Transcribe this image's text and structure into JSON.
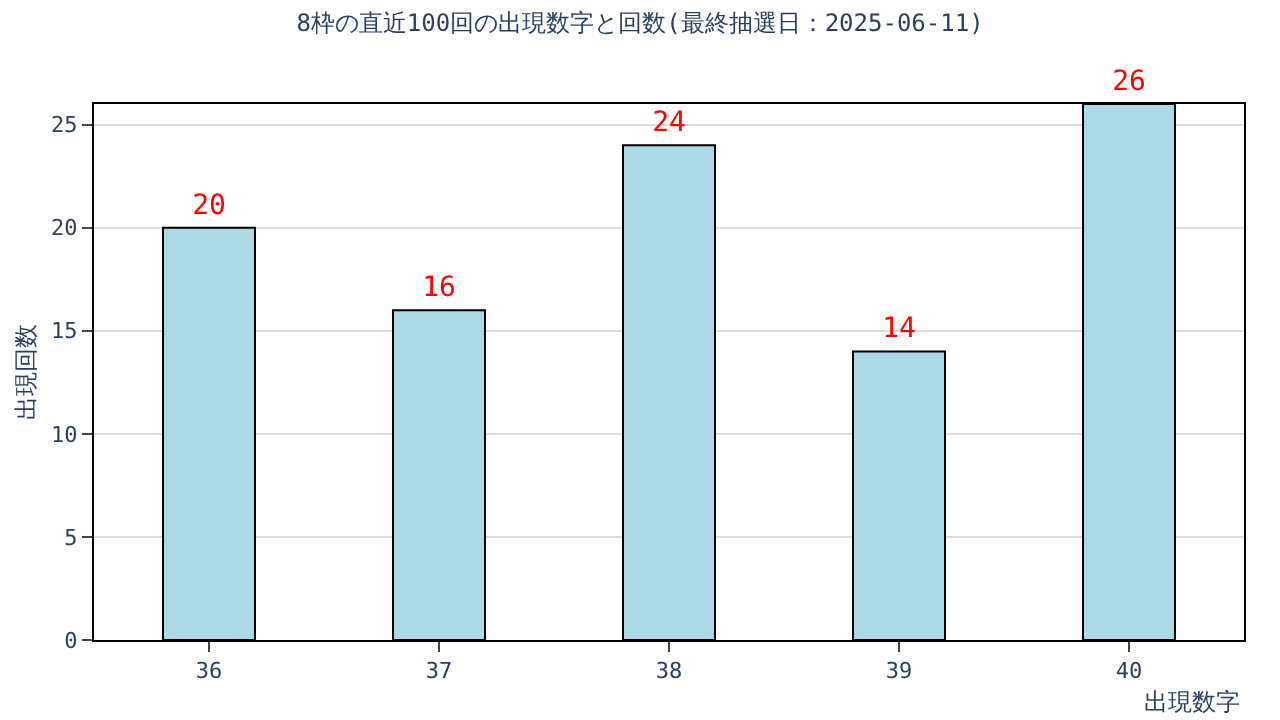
{
  "chart_data": {
    "type": "bar",
    "title": "8枠の直近100回の出現数字と回数(最終抽選日：2025-06-11)",
    "xlabel": "出現数字",
    "ylabel": "出現回数",
    "categories": [
      "36",
      "37",
      "38",
      "39",
      "40"
    ],
    "values": [
      20,
      16,
      24,
      14,
      26
    ],
    "color": "#add8e6",
    "ylim": [
      0,
      26
    ],
    "yticks": [
      0,
      5,
      10,
      15,
      20,
      25
    ],
    "grid": "y",
    "data_labels": true,
    "legend": false
  }
}
